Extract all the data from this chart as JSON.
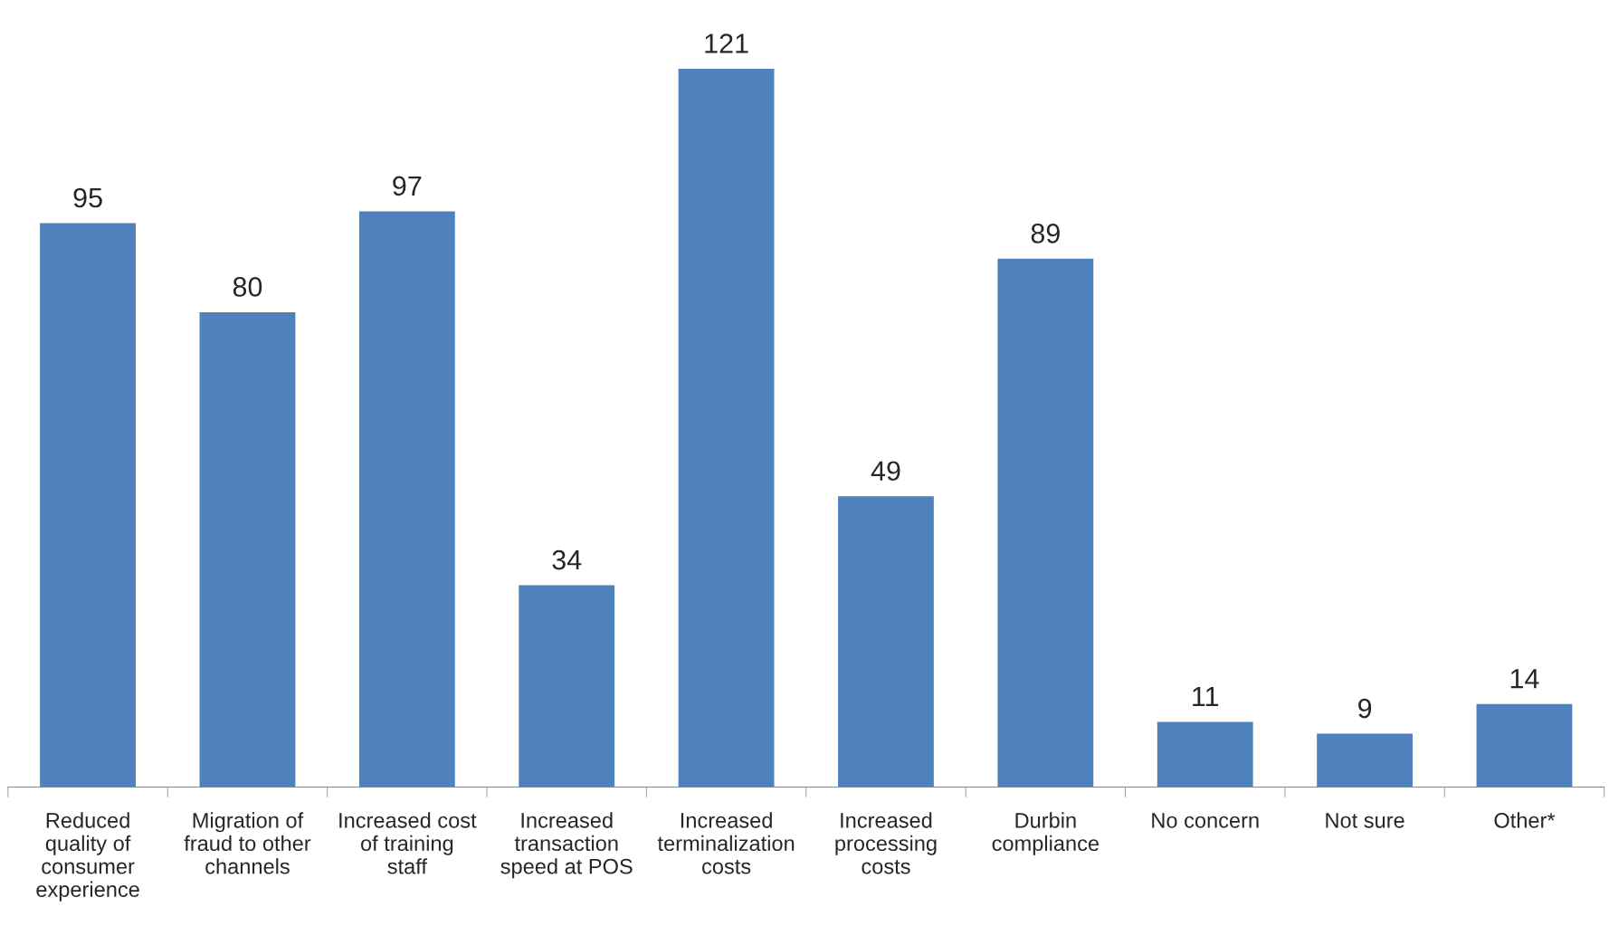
{
  "chart_data": {
    "type": "bar",
    "categories": [
      "Reduced quality of consumer experience",
      "Migration of fraud to other channels",
      "Increased cost of training staff",
      "Increased transaction speed at POS",
      "Increased terminalization costs",
      "Increased processing costs",
      "Durbin compliance",
      "No concern",
      "Not sure",
      "Other*"
    ],
    "values": [
      95,
      80,
      97,
      34,
      121,
      49,
      89,
      11,
      9,
      14
    ],
    "color": "#4f81bd",
    "data_labels": true,
    "grid": false
  }
}
